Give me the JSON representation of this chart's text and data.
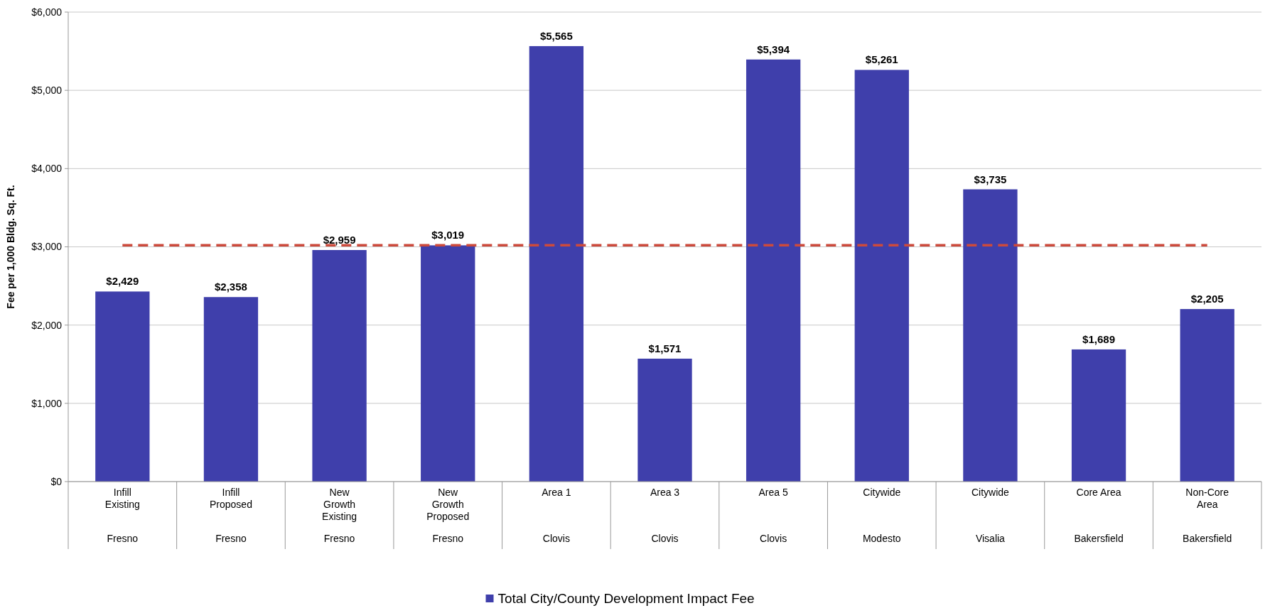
{
  "chart_data": {
    "type": "bar",
    "ylabel": "Fee per 1,000 Bldg. Sq. Ft.",
    "categories": [
      "Infill\nExisting\nFresno",
      "Infill\nProposed\nFresno",
      "New\nGrowth\nExisting\nFresno",
      "New\nGrowth\nProposed\nFresno",
      "Area 1\nClovis",
      "Area 3\nClovis",
      "Area 5\nClovis",
      "Citywide\nModesto",
      "Citywide\nVisalia",
      "Core Area\nBakersfield",
      "Non-Core\nArea\nBakersfield"
    ],
    "series": [
      {
        "name": "Total City/County Development Impact Fee",
        "color": "#3f3fab",
        "values": [
          2429,
          2358,
          2959,
          3019,
          5565,
          1571,
          5394,
          5261,
          3735,
          1689,
          2205
        ]
      }
    ],
    "value_labels": [
      "$2,429",
      "$2,358",
      "$2,959",
      "$3,019",
      "$5,565",
      "$1,571",
      "$5,394",
      "$5,261",
      "$3,735",
      "$1,689",
      "$2,205"
    ],
    "ylim": [
      0,
      6000
    ],
    "yticks": [
      {
        "value": 0,
        "label": "$0"
      },
      {
        "value": 1000,
        "label": "$1,000"
      },
      {
        "value": 2000,
        "label": "$2,000"
      },
      {
        "value": 3000,
        "label": "$3,000"
      },
      {
        "value": 4000,
        "label": "$4,000"
      },
      {
        "value": 5000,
        "label": "$5,000"
      },
      {
        "value": 6000,
        "label": "$6,000"
      }
    ],
    "grid": "y",
    "legend": "bottom",
    "ref_lines": [
      {
        "axis": "y",
        "value": 3020,
        "color": "#cc4a3c",
        "line_style": "dashed"
      }
    ]
  }
}
